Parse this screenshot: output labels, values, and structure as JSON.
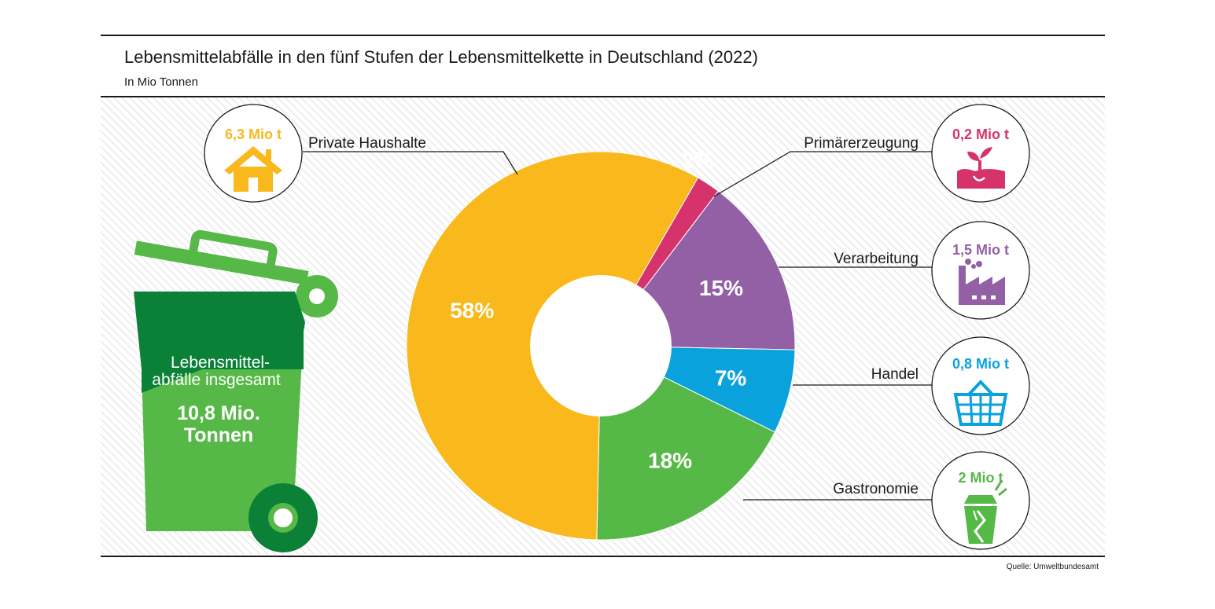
{
  "title": "Lebensmittelabfälle in den fünf Stufen der Lebensmittelkette in Deutschland (2022)",
  "subtitle": "In Mio Tonnen",
  "source": "Quelle: Umweltbundesamt",
  "total": {
    "label_line1": "Lebensmittel-",
    "label_line2": "abfälle insgesamt",
    "value_line1": "10,8 Mio.",
    "value_line2": "Tonnen"
  },
  "colors": {
    "bin_dark": "#0a8137",
    "bin_light": "#56b847",
    "background_hatch": "#f3f3f3"
  },
  "chart_data": {
    "type": "pie",
    "variant": "donut",
    "title": "Lebensmittelabfälle in den fünf Stufen der Lebensmittelkette in Deutschland (2022)",
    "unit": "Mio Tonnen",
    "segments": [
      {
        "category": "Primärerzeugung",
        "percent": 2,
        "label": "2%",
        "amount": "0,2 Mio t",
        "color": "#d6336c",
        "icon": "sprout-icon"
      },
      {
        "category": "Verarbeitung",
        "percent": 15,
        "label": "15%",
        "amount": "1,5 Mio t",
        "color": "#9360a6",
        "icon": "factory-icon"
      },
      {
        "category": "Handel",
        "percent": 7,
        "label": "7%",
        "amount": "0,8 Mio t",
        "color": "#0aa2dc",
        "icon": "basket-icon"
      },
      {
        "category": "Gastronomie",
        "percent": 18,
        "label": "18%",
        "amount": "2 Mio t",
        "color": "#56b847",
        "icon": "takeout-box-icon"
      },
      {
        "category": "Private Haushalte",
        "percent": 58,
        "label": "58%",
        "amount": "6,3 Mio t",
        "color": "#f9b81b",
        "icon": "house-icon"
      }
    ]
  }
}
